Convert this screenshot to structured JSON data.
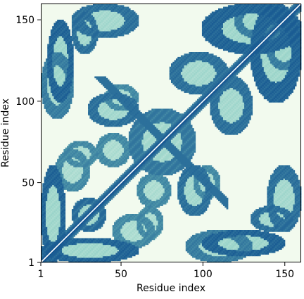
{
  "chart_data": {
    "type": "heatmap",
    "title": "",
    "xlabel": "Residue index",
    "ylabel": "Residue index",
    "xlim": [
      1,
      160
    ],
    "ylim": [
      1,
      160
    ],
    "xticks": [
      1,
      50,
      100,
      150
    ],
    "yticks": [
      1,
      50,
      100,
      150
    ],
    "colormap": {
      "low": "#f2faee",
      "mid": "#7cc7bd",
      "high": "#0a4a8c"
    },
    "diagonal_line_color": "#ffffff",
    "symmetric": true,
    "description_of_pattern": "Residue contact map with dense contacts near the diagonal, anti-diagonal band between residues 55-95, and off-diagonal patches.",
    "contact_regions": [
      {
        "x": [
          1,
          15
        ],
        "y": [
          1,
          60
        ],
        "value": 0.85
      },
      {
        "x": [
          20,
          40
        ],
        "y": [
          20,
          40
        ],
        "value": 0.8
      },
      {
        "x": [
          45,
          70
        ],
        "y": [
          10,
          30
        ],
        "value": 0.7
      },
      {
        "x": [
          5,
          20
        ],
        "y": [
          100,
          150
        ],
        "value": 0.85
      },
      {
        "x": [
          20,
          35
        ],
        "y": [
          130,
          155
        ],
        "value": 0.8
      },
      {
        "x": [
          55,
          95
        ],
        "y": [
          55,
          95
        ],
        "value": 0.75
      },
      {
        "x": [
          30,
          60
        ],
        "y": [
          85,
          105
        ],
        "value": 0.8
      },
      {
        "x": [
          90,
          130
        ],
        "y": [
          1,
          20
        ],
        "value": 0.75
      },
      {
        "x": [
          105,
          130
        ],
        "y": [
          80,
          115
        ],
        "value": 0.8
      },
      {
        "x": [
          130,
          160
        ],
        "y": [
          100,
          160
        ],
        "value": 0.85
      },
      {
        "x": [
          140,
          160
        ],
        "y": [
          20,
          60
        ],
        "value": 0.8
      },
      {
        "x": [
          120,
          145
        ],
        "y": [
          140,
          160
        ],
        "value": 0.75
      },
      {
        "x": [
          60,
          80
        ],
        "y": [
          35,
          55
        ],
        "value": 0.7
      },
      {
        "x": [
          15,
          35
        ],
        "y": [
          60,
          75
        ],
        "value": 0.7
      },
      {
        "x": [
          95,
          110
        ],
        "y": [
          40,
          60
        ],
        "value": 0.7
      }
    ]
  }
}
